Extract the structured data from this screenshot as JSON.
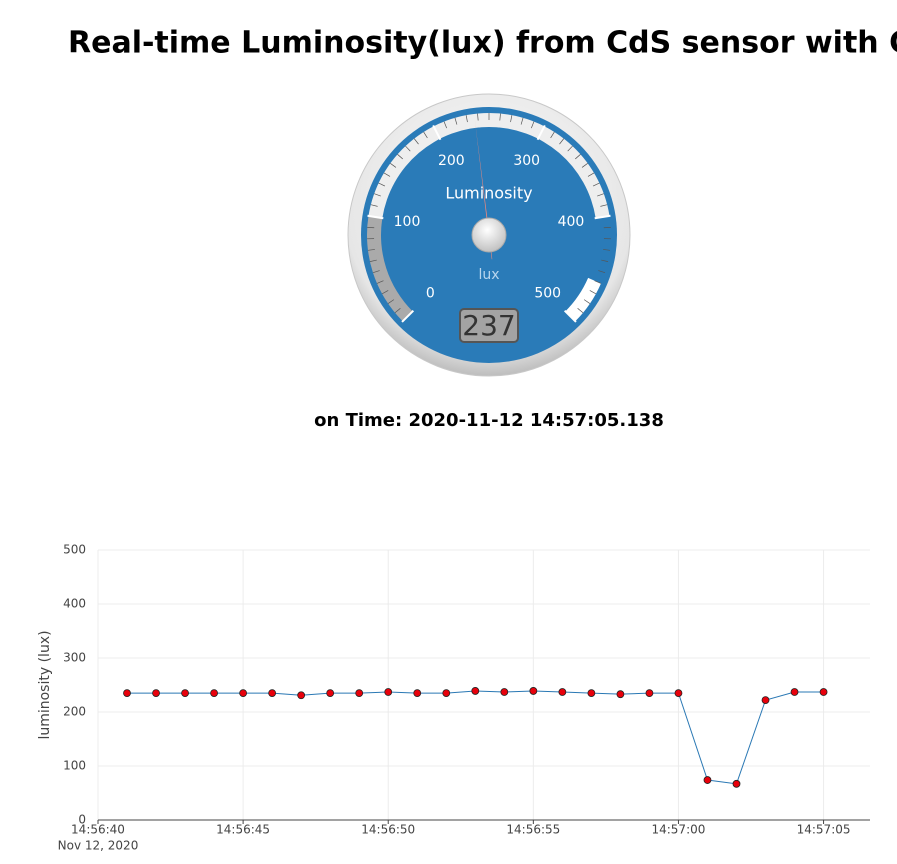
{
  "title": "Real-time Luminosity(lux) from CdS sensor with Gauge",
  "time_label": "on Time: 2020-11-12 14:57:05.138",
  "chart_data": [
    {
      "type": "gauge",
      "title": "Luminosity",
      "units": "lux",
      "value": 237,
      "min": 0,
      "max": 500,
      "ticks": [
        0,
        100,
        200,
        300,
        400,
        500
      ],
      "minor_ticks": 10,
      "color": "#2a7bb8",
      "needle_color": "#f0887c",
      "highlights": [
        {
          "from": 0,
          "to": 100,
          "color": "#aaaaaa"
        },
        {
          "from": 100,
          "to": 400,
          "color": "#eeeeee"
        },
        {
          "from": 460,
          "to": 500,
          "color": "#ffffff"
        }
      ]
    },
    {
      "type": "line",
      "ylabel": "luminosity (lux)",
      "x_date_label": "Nov 12, 2020",
      "x": [
        "2020-11-12 14:56:41",
        "2020-11-12 14:56:42",
        "2020-11-12 14:56:43",
        "2020-11-12 14:56:44",
        "2020-11-12 14:56:45",
        "2020-11-12 14:56:46",
        "2020-11-12 14:56:47",
        "2020-11-12 14:56:48",
        "2020-11-12 14:56:49",
        "2020-11-12 14:56:50",
        "2020-11-12 14:56:51",
        "2020-11-12 14:56:52",
        "2020-11-12 14:56:53",
        "2020-11-12 14:56:54",
        "2020-11-12 14:56:55",
        "2020-11-12 14:56:56",
        "2020-11-12 14:56:57",
        "2020-11-12 14:56:58",
        "2020-11-12 14:56:59",
        "2020-11-12 14:57:00",
        "2020-11-12 14:57:01",
        "2020-11-12 14:57:02",
        "2020-11-12 14:57:03",
        "2020-11-12 14:57:04",
        "2020-11-12 14:57:05"
      ],
      "series": [
        {
          "name": "luminosity",
          "color": "#2a78b4",
          "marker_color": "#e8000b",
          "values": [
            235,
            235,
            235,
            235,
            235,
            235,
            231,
            235,
            235,
            237,
            235,
            235,
            239,
            237,
            239,
            237,
            235,
            233,
            235,
            235,
            74,
            67,
            222,
            237,
            237
          ]
        }
      ],
      "xlim": [
        "2020-11-12 14:56:40",
        "2020-11-12 14:57:06.6"
      ],
      "xticks": [
        {
          "value": "2020-11-12 14:56:40",
          "label": "14:56:40"
        },
        {
          "value": "2020-11-12 14:56:45",
          "label": "14:56:45"
        },
        {
          "value": "2020-11-12 14:56:50",
          "label": "14:56:50"
        },
        {
          "value": "2020-11-12 14:56:55",
          "label": "14:56:55"
        },
        {
          "value": "2020-11-12 14:57:00",
          "label": "14:57:00"
        },
        {
          "value": "2020-11-12 14:57:05",
          "label": "14:57:05"
        }
      ],
      "ylim": [
        0,
        500
      ],
      "yticks": [
        0,
        100,
        200,
        300,
        400,
        500
      ],
      "grid": true
    }
  ]
}
